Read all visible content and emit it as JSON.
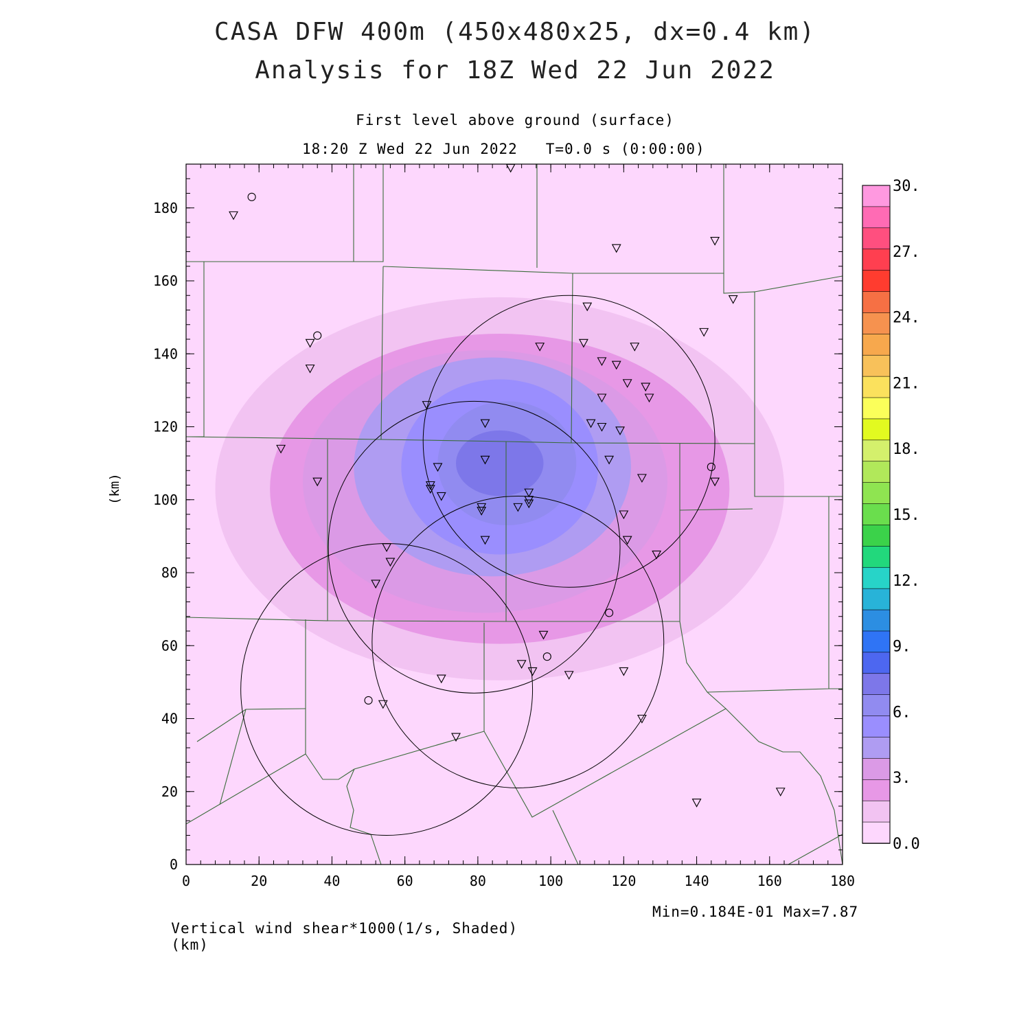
{
  "header": {
    "title_line1": "CASA DFW 400m (450x480x25, dx=0.4 km)",
    "title_line2": "Analysis for 18Z Wed 22 Jun 2022",
    "subtitle_level": "First level above ground (surface)",
    "subtitle_time": "18:20 Z Wed 22 Jun 2022   T=0.0 s (0:00:00)"
  },
  "axes": {
    "x_label": "(km)",
    "y_label": "(km)",
    "x_ticks": [
      "0",
      "20",
      "40",
      "60",
      "80",
      "100",
      "120",
      "140",
      "160",
      "180"
    ],
    "y_ticks": [
      "0",
      "20",
      "40",
      "60",
      "80",
      "100",
      "120",
      "140",
      "160",
      "180"
    ],
    "x_range": [
      0,
      180
    ],
    "y_range": [
      0,
      192
    ]
  },
  "footer": {
    "field_label": "Vertical wind shear*1000(1/s, Shaded)",
    "min_max": "Min=0.184E-01 Max=7.87"
  },
  "colorbar": {
    "labels": [
      "30.",
      "27.",
      "24.",
      "21.",
      "18.",
      "15.",
      "12.",
      "9.",
      "6.",
      "3.",
      "0.0"
    ],
    "colors": [
      "#ff99e0",
      "#ff6bb4",
      "#ff4f7f",
      "#ff3f50",
      "#ff3c2f",
      "#f67044",
      "#f6924f",
      "#f7a84d",
      "#f8c15a",
      "#fbe15d",
      "#fbff5a",
      "#e2fa20",
      "#d4f06c",
      "#b1e85a",
      "#8fe451",
      "#6ade4d",
      "#3bd24a",
      "#22d87c",
      "#27d4c8",
      "#28b3d8",
      "#2c8ee2",
      "#2f74f5",
      "#4d67f0",
      "#7d77e9",
      "#918bf0",
      "#9a8efe",
      "#af9cf2",
      "#db9ae6",
      "#e798e6",
      "#f2c3f2",
      "#fdd7fd"
    ]
  },
  "shading": {
    "levels": [
      {
        "level": 0.0,
        "color": "#fdd7fd"
      },
      {
        "level": 1.0,
        "color": "#f2c3f2"
      },
      {
        "level": 2.0,
        "color": "#e798e6"
      },
      {
        "level": 3.0,
        "color": "#db9ae6"
      },
      {
        "level": 4.0,
        "color": "#af9cf2"
      },
      {
        "level": 5.0,
        "color": "#9a8efe"
      },
      {
        "level": 6.0,
        "color": "#918bf0"
      },
      {
        "level": 7.0,
        "color": "#7d77e9"
      }
    ],
    "max_center_km": [
      86,
      113
    ]
  },
  "radar_rings": [
    {
      "center_km": [
        105,
        116
      ],
      "radius_km": 40
    },
    {
      "center_km": [
        79,
        87
      ],
      "radius_km": 40
    },
    {
      "center_km": [
        91,
        61
      ],
      "radius_km": 40
    },
    {
      "center_km": [
        55,
        48
      ],
      "radius_km": 40
    }
  ],
  "stations_circle": [
    [
      18,
      183
    ],
    [
      36,
      145
    ],
    [
      144,
      109
    ],
    [
      116,
      69
    ],
    [
      99,
      57
    ],
    [
      50,
      45
    ]
  ],
  "stations_triangle": [
    [
      13,
      178
    ],
    [
      89,
      191
    ],
    [
      118,
      169
    ],
    [
      145,
      171
    ],
    [
      150,
      155
    ],
    [
      142,
      146
    ],
    [
      110,
      153
    ],
    [
      34,
      143
    ],
    [
      34,
      136
    ],
    [
      97,
      142
    ],
    [
      109,
      143
    ],
    [
      123,
      142
    ],
    [
      114,
      138
    ],
    [
      118,
      137
    ],
    [
      121,
      132
    ],
    [
      126,
      131
    ],
    [
      127,
      128
    ],
    [
      114,
      128
    ],
    [
      66,
      126
    ],
    [
      82,
      121
    ],
    [
      111,
      121
    ],
    [
      114,
      120
    ],
    [
      119,
      119
    ],
    [
      26,
      114
    ],
    [
      82,
      111
    ],
    [
      116,
      111
    ],
    [
      125,
      106
    ],
    [
      36,
      105
    ],
    [
      145,
      105
    ],
    [
      69,
      109
    ],
    [
      67,
      104
    ],
    [
      67,
      103
    ],
    [
      70,
      101
    ],
    [
      94,
      102
    ],
    [
      94,
      100
    ],
    [
      94,
      99
    ],
    [
      91,
      98
    ],
    [
      81,
      98
    ],
    [
      81,
      97
    ],
    [
      120,
      96
    ],
    [
      82,
      89
    ],
    [
      121,
      89
    ],
    [
      55,
      87
    ],
    [
      56,
      83
    ],
    [
      129,
      85
    ],
    [
      52,
      77
    ],
    [
      98,
      63
    ],
    [
      92,
      55
    ],
    [
      95,
      53
    ],
    [
      105,
      52
    ],
    [
      120,
      53
    ],
    [
      70,
      51
    ],
    [
      54,
      44
    ],
    [
      125,
      40
    ],
    [
      74,
      35
    ],
    [
      163,
      20
    ],
    [
      140,
      17
    ]
  ]
}
